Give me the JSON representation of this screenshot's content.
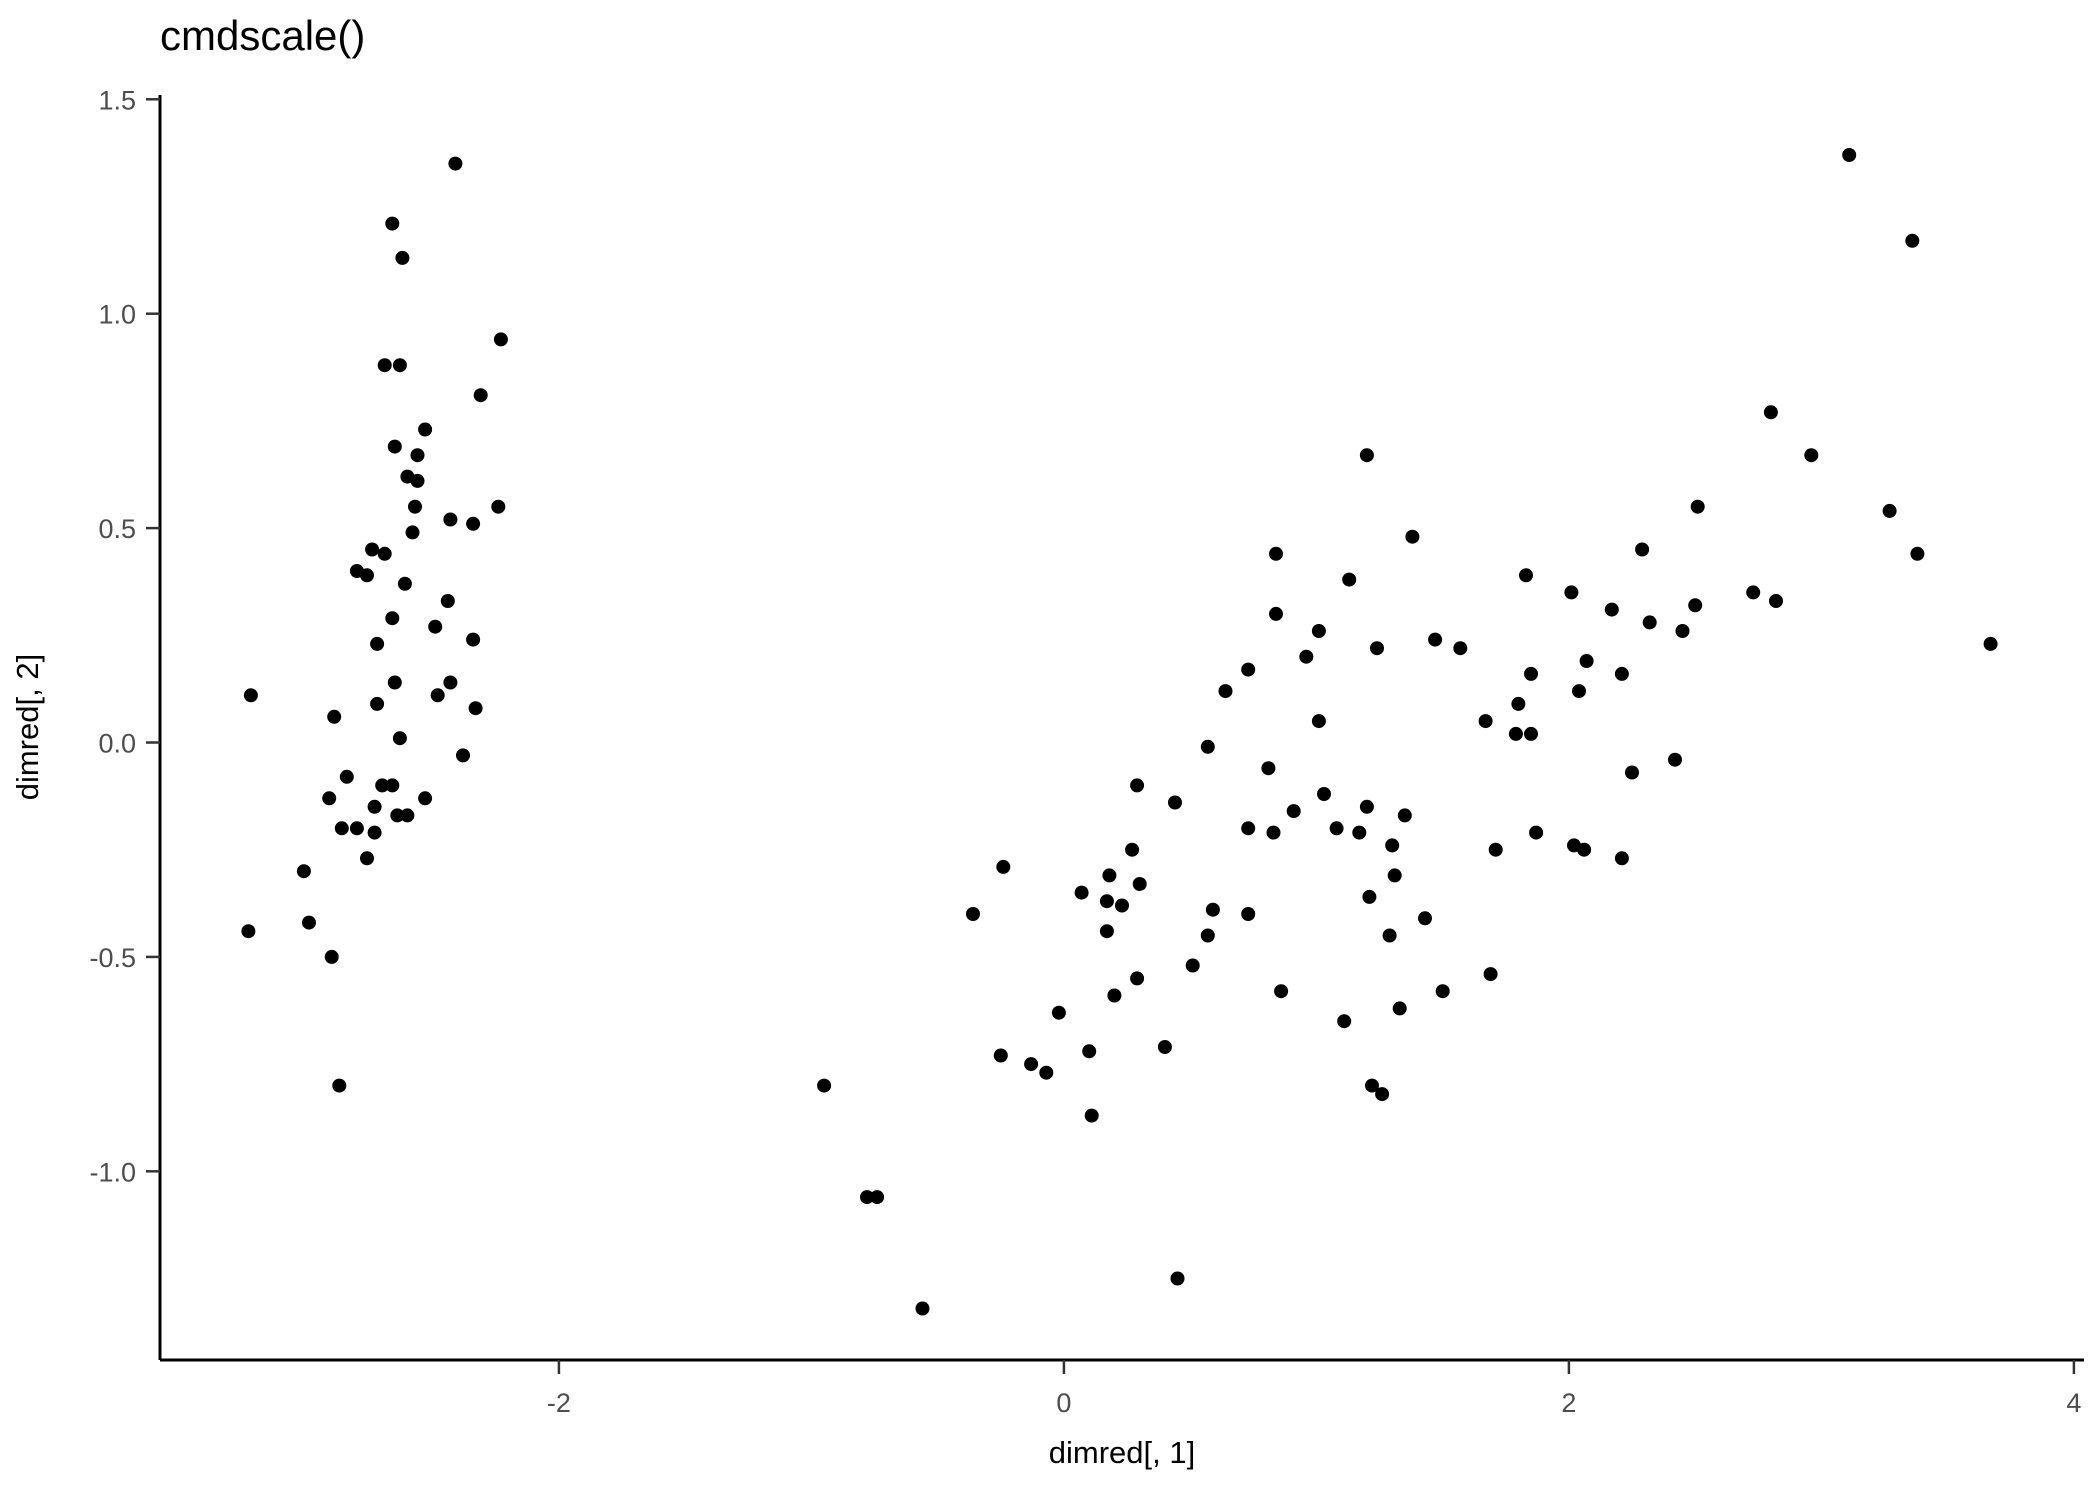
{
  "figure": {
    "title": "cmdscale()",
    "x_axis_label": "dimred[, 1]",
    "y_axis_label": "dimred[, 2]"
  },
  "chart_data": {
    "type": "scatter",
    "title": "cmdscale()",
    "xlabel": "dimred[, 1]",
    "ylabel": "dimred[, 2]",
    "x_range": [
      -3.58,
      4.04
    ],
    "y_range": [
      -1.44,
      1.51
    ],
    "grid": "off",
    "legend": "none",
    "point_color": "#000000",
    "axis_line_color": "#000000",
    "axis_text_color": "#4d4d4d",
    "x_ticks": [
      {
        "v": -2,
        "label": "-2"
      },
      {
        "v": 0,
        "label": "0"
      },
      {
        "v": 2,
        "label": "2"
      },
      {
        "v": 4,
        "label": "4"
      }
    ],
    "y_ticks": [
      {
        "v": 1.5,
        "label": "1.5"
      },
      {
        "v": 1.0,
        "label": "1.0"
      },
      {
        "v": 0.5,
        "label": "0.5"
      },
      {
        "v": 0.0,
        "label": "0.0"
      },
      {
        "v": -0.5,
        "label": "-0.5"
      },
      {
        "v": -1.0,
        "label": "-1.0"
      }
    ],
    "points": [
      [
        -2.41,
        1.35
      ],
      [
        -2.66,
        1.21
      ],
      [
        -2.62,
        1.13
      ],
      [
        -2.23,
        0.94
      ],
      [
        -2.69,
        0.88
      ],
      [
        -2.63,
        0.88
      ],
      [
        -2.31,
        0.81
      ],
      [
        -2.53,
        0.73
      ],
      [
        -2.65,
        0.69
      ],
      [
        -2.56,
        0.67
      ],
      [
        -2.6,
        0.62
      ],
      [
        -2.56,
        0.61
      ],
      [
        -2.57,
        0.55
      ],
      [
        -2.43,
        0.52
      ],
      [
        -2.34,
        0.51
      ],
      [
        -2.24,
        0.55
      ],
      [
        -2.58,
        0.49
      ],
      [
        -2.74,
        0.45
      ],
      [
        -2.69,
        0.44
      ],
      [
        -2.8,
        0.4
      ],
      [
        -2.76,
        0.39
      ],
      [
        -2.61,
        0.37
      ],
      [
        -2.44,
        0.33
      ],
      [
        -2.66,
        0.29
      ],
      [
        -2.49,
        0.27
      ],
      [
        -2.72,
        0.23
      ],
      [
        -2.34,
        0.24
      ],
      [
        -3.22,
        0.11
      ],
      [
        -2.65,
        0.14
      ],
      [
        -2.43,
        0.14
      ],
      [
        -2.89,
        0.06
      ],
      [
        -2.72,
        0.09
      ],
      [
        -2.48,
        0.11
      ],
      [
        -2.33,
        0.08
      ],
      [
        -2.63,
        0.01
      ],
      [
        -2.38,
        -0.03
      ],
      [
        -2.84,
        -0.08
      ],
      [
        -2.7,
        -0.1
      ],
      [
        -2.66,
        -0.1
      ],
      [
        -2.91,
        -0.13
      ],
      [
        -2.53,
        -0.13
      ],
      [
        -2.73,
        -0.15
      ],
      [
        -2.64,
        -0.17
      ],
      [
        -2.6,
        -0.17
      ],
      [
        -2.86,
        -0.2
      ],
      [
        -2.8,
        -0.2
      ],
      [
        -2.73,
        -0.21
      ],
      [
        -2.76,
        -0.27
      ],
      [
        -3.01,
        -0.3
      ],
      [
        -2.99,
        -0.42
      ],
      [
        -3.23,
        -0.44
      ],
      [
        -2.9,
        -0.5
      ],
      [
        -2.87,
        -0.8
      ],
      [
        1.2,
        0.67
      ],
      [
        3.11,
        1.37
      ],
      [
        3.36,
        1.17
      ],
      [
        2.8,
        0.77
      ],
      [
        2.96,
        0.67
      ],
      [
        2.51,
        0.55
      ],
      [
        3.27,
        0.54
      ],
      [
        0.84,
        0.44
      ],
      [
        0.84,
        0.3
      ],
      [
        0.73,
        0.17
      ],
      [
        0.64,
        0.12
      ],
      [
        0.57,
        -0.01
      ],
      [
        0.81,
        -0.06
      ],
      [
        0.29,
        -0.1
      ],
      [
        0.44,
        -0.14
      ],
      [
        0.73,
        -0.2
      ],
      [
        0.83,
        -0.21
      ],
      [
        0.27,
        -0.25
      ],
      [
        -0.24,
        -0.29
      ],
      [
        0.18,
        -0.31
      ],
      [
        0.3,
        -0.33
      ],
      [
        0.07,
        -0.35
      ],
      [
        0.17,
        -0.37
      ],
      [
        0.23,
        -0.38
      ],
      [
        -0.36,
        -0.4
      ],
      [
        0.59,
        -0.39
      ],
      [
        0.73,
        -0.4
      ],
      [
        0.17,
        -0.44
      ],
      [
        0.57,
        -0.45
      ],
      [
        1.38,
        0.48
      ],
      [
        1.13,
        0.38
      ],
      [
        1.83,
        0.39
      ],
      [
        2.01,
        0.35
      ],
      [
        2.29,
        0.45
      ],
      [
        2.17,
        0.31
      ],
      [
        2.32,
        0.28
      ],
      [
        2.5,
        0.32
      ],
      [
        1.01,
        0.26
      ],
      [
        2.45,
        0.26
      ],
      [
        0.96,
        0.2
      ],
      [
        1.24,
        0.22
      ],
      [
        1.47,
        0.24
      ],
      [
        1.57,
        0.22
      ],
      [
        2.07,
        0.19
      ],
      [
        2.21,
        0.16
      ],
      [
        1.85,
        0.16
      ],
      [
        2.04,
        0.12
      ],
      [
        1.8,
        0.09
      ],
      [
        1.67,
        0.05
      ],
      [
        1.79,
        0.02
      ],
      [
        1.85,
        0.02
      ],
      [
        1.01,
        0.05
      ],
      [
        2.42,
        -0.04
      ],
      [
        2.25,
        -0.07
      ],
      [
        1.03,
        -0.12
      ],
      [
        0.91,
        -0.16
      ],
      [
        1.2,
        -0.15
      ],
      [
        1.08,
        -0.2
      ],
      [
        1.17,
        -0.21
      ],
      [
        1.35,
        -0.17
      ],
      [
        1.3,
        -0.24
      ],
      [
        1.87,
        -0.21
      ],
      [
        1.71,
        -0.25
      ],
      [
        2.02,
        -0.24
      ],
      [
        2.06,
        -0.25
      ],
      [
        2.21,
        -0.27
      ],
      [
        1.31,
        -0.31
      ],
      [
        1.21,
        -0.36
      ],
      [
        1.43,
        -0.41
      ],
      [
        1.29,
        -0.45
      ],
      [
        3.38,
        0.44
      ],
      [
        2.73,
        0.35
      ],
      [
        2.82,
        0.33
      ],
      [
        3.67,
        0.23
      ],
      [
        0.51,
        -0.52
      ],
      [
        0.29,
        -0.55
      ],
      [
        0.2,
        -0.59
      ],
      [
        -0.02,
        -0.63
      ],
      [
        0.86,
        -0.58
      ],
      [
        -0.25,
        -0.73
      ],
      [
        -0.13,
        -0.75
      ],
      [
        -0.07,
        -0.77
      ],
      [
        0.1,
        -0.72
      ],
      [
        0.4,
        -0.71
      ],
      [
        0.11,
        -0.87
      ],
      [
        -0.78,
        -1.06
      ],
      [
        -0.74,
        -1.06
      ],
      [
        0.45,
        -1.25
      ],
      [
        -0.56,
        -1.32
      ],
      [
        1.69,
        -0.54
      ],
      [
        1.5,
        -0.58
      ],
      [
        1.33,
        -0.62
      ],
      [
        1.11,
        -0.65
      ],
      [
        1.22,
        -0.8
      ],
      [
        1.26,
        -0.82
      ],
      [
        -0.95,
        -0.8
      ]
    ]
  }
}
